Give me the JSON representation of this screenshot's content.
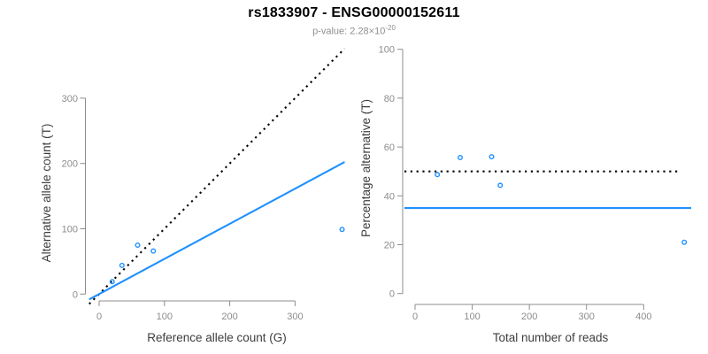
{
  "title": "rs1833907 - ENSG00000152611",
  "subtitle": {
    "prefix": "p-value: 2.28×10",
    "exponent": "-20"
  },
  "colors": {
    "accent_blue": "#1E90FF",
    "line_black": "#000000",
    "axis_gray": "#8C8C8C",
    "axis_title_dark": "#3D3D3D",
    "subtitle_gray": "#8F8F8F"
  },
  "chart_data": [
    {
      "id": "allele-counts",
      "type": "scatter",
      "xlabel": "Reference allele count (G)",
      "ylabel": "Alternative allele count (T)",
      "xticks": [
        0,
        100,
        200,
        300
      ],
      "yticks": [
        0,
        100,
        200,
        300
      ],
      "xlim": [
        -15,
        376
      ],
      "ylim": [
        -15,
        391
      ],
      "grid": false,
      "legend": false,
      "points": [
        {
          "x": 20,
          "y": 19
        },
        {
          "x": 35,
          "y": 44
        },
        {
          "x": 59,
          "y": 75
        },
        {
          "x": 83,
          "y": 66
        },
        {
          "x": 372,
          "y": 99
        }
      ],
      "lines": [
        {
          "name": "identity-line",
          "kind": "abline",
          "slope": 1,
          "intercept": 0,
          "style": "dotted",
          "color": "#000000"
        },
        {
          "name": "fit-line",
          "kind": "abline",
          "slope": 0.538,
          "intercept": 0,
          "style": "solid",
          "color": "#1E90FF"
        }
      ]
    },
    {
      "id": "percentage-alternative",
      "type": "scatter",
      "xlabel": "Total number of reads",
      "ylabel": "Percentage alternative (T)",
      "xticks": [
        0,
        100,
        200,
        300,
        400
      ],
      "yticks": [
        0,
        20,
        40,
        60,
        80,
        100
      ],
      "xlim": [
        -19,
        490
      ],
      "ylim": [
        0,
        100
      ],
      "grid": false,
      "legend": false,
      "points": [
        {
          "x": 39,
          "y": 48.7
        },
        {
          "x": 79,
          "y": 55.7
        },
        {
          "x": 134,
          "y": 56
        },
        {
          "x": 149,
          "y": 44.3
        },
        {
          "x": 471,
          "y": 21
        }
      ],
      "lines": [
        {
          "name": "null-50pct-line",
          "kind": "hline",
          "y": 50,
          "style": "dotted",
          "color": "#000000"
        },
        {
          "name": "fit-line",
          "kind": "hline",
          "y": 35,
          "style": "solid",
          "color": "#1E90FF"
        }
      ]
    }
  ]
}
